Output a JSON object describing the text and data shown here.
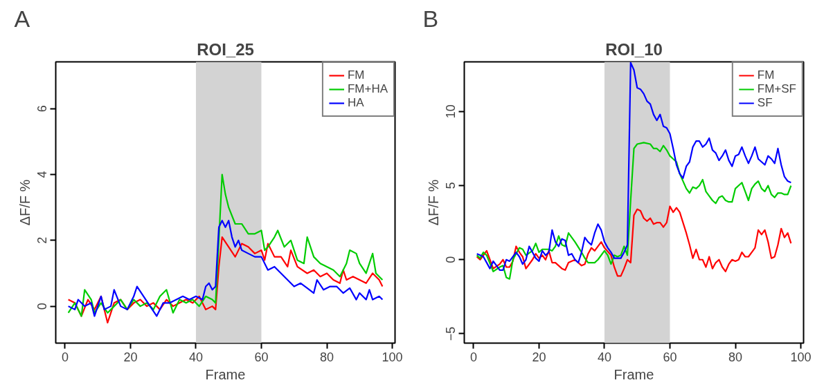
{
  "chart_data": [
    {
      "type": "line",
      "title": "ROI_25",
      "annotations": [
        "A"
      ],
      "xlabel": "Frame",
      "ylabel": "ΔF/F %",
      "xlim": [
        -2.84,
        100.84
      ],
      "ylim": [
        -1.12,
        7.42
      ],
      "xticks": [
        0,
        20,
        40,
        60,
        80,
        100
      ],
      "yticks": [
        0,
        2,
        4,
        6
      ],
      "grid": false,
      "legend": "top right",
      "bands": [
        {
          "axis": "x",
          "from": 40,
          "to": 60,
          "color": "#d3d3d3"
        }
      ],
      "series": [
        {
          "name": "FM",
          "color": "#ff0000",
          "x": [
            1,
            3,
            5,
            7,
            9,
            11,
            13,
            15,
            17,
            19,
            21,
            23,
            25,
            27,
            29,
            31,
            33,
            35,
            37,
            39,
            41,
            43,
            45,
            46,
            47,
            48,
            50,
            52,
            54,
            56,
            58,
            60,
            61,
            62,
            64,
            66,
            68,
            69,
            71,
            74,
            76,
            78,
            80,
            82,
            84,
            85,
            86,
            88,
            90,
            92,
            94,
            96,
            97
          ],
          "values": [
            0.2,
            0.1,
            -0.3,
            0.2,
            -0.1,
            0.3,
            -0.5,
            0.1,
            0.2,
            -0.1,
            0.1,
            0.2,
            0.0,
            0.1,
            -0.1,
            0.2,
            0.0,
            0.1,
            0.2,
            0.1,
            0.3,
            -0.1,
            0.0,
            -0.1,
            1.2,
            2.1,
            1.8,
            1.5,
            1.9,
            1.8,
            1.6,
            1.7,
            1.4,
            1.9,
            1.5,
            1.5,
            1.2,
            1.7,
            1.2,
            1.0,
            1.1,
            0.9,
            1.0,
            0.8,
            0.7,
            1.1,
            0.8,
            0.9,
            0.8,
            0.7,
            1.0,
            0.8,
            0.6
          ]
        },
        {
          "name": "FM+HA",
          "color": "#00cc00",
          "x": [
            1,
            3,
            5,
            6,
            8,
            9,
            11,
            13,
            15,
            17,
            19,
            21,
            23,
            25,
            27,
            29,
            31,
            33,
            35,
            37,
            39,
            41,
            43,
            45,
            46,
            47,
            48,
            49,
            50,
            52,
            54,
            56,
            58,
            60,
            61,
            62,
            64,
            65,
            67,
            69,
            71,
            73,
            74,
            76,
            78,
            80,
            82,
            84,
            86,
            87,
            89,
            90,
            92,
            93,
            94,
            95,
            96,
            97
          ],
          "values": [
            -0.2,
            0.1,
            -0.3,
            0.5,
            0.2,
            -0.2,
            0.1,
            -0.2,
            0.0,
            0.2,
            -0.1,
            0.2,
            0.0,
            0.1,
            -0.1,
            0.3,
            0.5,
            -0.2,
            0.2,
            0.1,
            0.2,
            0.0,
            0.3,
            0.2,
            0.1,
            2.0,
            4.0,
            3.4,
            3.0,
            2.5,
            2.5,
            2.2,
            2.2,
            2.3,
            1.7,
            1.8,
            2.1,
            2.3,
            1.8,
            2.0,
            1.4,
            1.3,
            2.1,
            1.5,
            1.3,
            1.2,
            1.1,
            0.9,
            1.3,
            1.7,
            1.6,
            1.3,
            1.0,
            1.3,
            1.6,
            1.0,
            0.9,
            0.8
          ]
        },
        {
          "name": "HA",
          "color": "#0000ff",
          "x": [
            1,
            3,
            4,
            6,
            8,
            9,
            11,
            12,
            14,
            15,
            17,
            19,
            21,
            22,
            24,
            26,
            28,
            30,
            32,
            34,
            36,
            38,
            40,
            42,
            43,
            44,
            45,
            46,
            47,
            48,
            49,
            50,
            51,
            52,
            53,
            54,
            56,
            58,
            60,
            62,
            64,
            66,
            68,
            70,
            72,
            74,
            76,
            77,
            79,
            81,
            83,
            85,
            87,
            89,
            90,
            92,
            93,
            94,
            96,
            97
          ],
          "values": [
            0.0,
            -0.1,
            0.2,
            0.0,
            0.1,
            -0.3,
            0.3,
            -0.1,
            0.0,
            0.5,
            0.0,
            -0.1,
            0.3,
            0.6,
            0.3,
            0.0,
            -0.3,
            0.1,
            0.1,
            0.2,
            0.3,
            0.2,
            0.3,
            0.2,
            0.6,
            0.7,
            0.5,
            0.6,
            2.4,
            2.6,
            2.4,
            2.6,
            2.1,
            1.8,
            2.0,
            1.7,
            1.6,
            1.5,
            1.5,
            1.1,
            1.2,
            1.0,
            0.8,
            0.6,
            0.7,
            0.55,
            0.4,
            0.8,
            0.5,
            0.6,
            0.6,
            0.4,
            0.55,
            0.2,
            0.4,
            0.2,
            0.5,
            0.2,
            0.3,
            0.2
          ]
        }
      ]
    },
    {
      "type": "line",
      "title": "ROI_10",
      "annotations": [
        "B"
      ],
      "xlabel": "Frame",
      "ylabel": "ΔF/F %",
      "xlim": [
        -2.84,
        100.84
      ],
      "ylim": [
        -5.63,
        13.35
      ],
      "xticks": [
        0,
        20,
        40,
        60,
        80,
        100
      ],
      "yticks": [
        -5,
        0,
        5,
        10
      ],
      "grid": false,
      "legend": "top right",
      "bands": [
        {
          "axis": "x",
          "from": 40,
          "to": 60,
          "color": "#d3d3d3"
        }
      ],
      "series": [
        {
          "name": "FM",
          "color": "#ff0000",
          "x": [
            1,
            2,
            4,
            6,
            8,
            9,
            10,
            11,
            12,
            13,
            14,
            15,
            16,
            18,
            19,
            20,
            21,
            22,
            23,
            24,
            25,
            27,
            28,
            29,
            31,
            33,
            34,
            35,
            36,
            37,
            39,
            40,
            42,
            43,
            44,
            45,
            46,
            47,
            48,
            49,
            50,
            51,
            52,
            53,
            54,
            55,
            56,
            57,
            58,
            59,
            60,
            61,
            62,
            63,
            64,
            65,
            66,
            67,
            68,
            69,
            70,
            71,
            72,
            73,
            74,
            75,
            76,
            77,
            78,
            79,
            80,
            81,
            82,
            83,
            84,
            85,
            86,
            87,
            88,
            89,
            90,
            91,
            92,
            93,
            94,
            95,
            96,
            97
          ],
          "values": [
            0.2,
            0.0,
            0.6,
            -0.6,
            -0.3,
            0.0,
            -0.5,
            -0.5,
            -0.1,
            0.9,
            0.5,
            0.2,
            -0.6,
            0.0,
            0.4,
            0.1,
            0.3,
            0.0,
            0.6,
            -0.2,
            -0.2,
            -0.6,
            -0.7,
            -0.2,
            0.0,
            -0.4,
            -0.3,
            0.4,
            0.8,
            0.6,
            1.2,
            0.8,
            0.3,
            -0.5,
            -1.1,
            -1.1,
            -0.6,
            0.0,
            -0.2,
            3.0,
            3.4,
            3.3,
            2.8,
            2.6,
            2.8,
            2.4,
            2.5,
            2.5,
            2.2,
            2.5,
            3.6,
            3.2,
            3.5,
            3.2,
            2.5,
            1.8,
            1.0,
            0.1,
            0.7,
            0.0,
            0.0,
            -0.5,
            0.2,
            -0.6,
            -0.2,
            0.0,
            -0.5,
            -0.8,
            -0.3,
            0.0,
            -0.1,
            0.0,
            0.5,
            0.2,
            0.2,
            0.5,
            0.8,
            2.0,
            1.7,
            2.0,
            1.2,
            0.1,
            0.2,
            1.0,
            2.1,
            1.5,
            1.8,
            1.1
          ]
        },
        {
          "name": "FM+SF",
          "color": "#00cc00",
          "x": [
            1,
            2,
            3,
            4,
            6,
            8,
            9,
            10,
            11,
            12,
            14,
            15,
            16,
            18,
            19,
            20,
            21,
            23,
            24,
            25,
            26,
            27,
            28,
            29,
            30,
            31,
            33,
            34,
            35,
            37,
            38,
            40,
            41,
            42,
            43,
            44,
            45,
            46,
            47,
            48,
            49,
            50,
            52,
            54,
            55,
            56,
            57,
            58,
            59,
            60,
            61,
            62,
            63,
            64,
            65,
            66,
            67,
            68,
            69,
            70,
            71,
            72,
            73,
            74,
            75,
            76,
            77,
            78,
            79,
            80,
            81,
            82,
            83,
            84,
            85,
            86,
            87,
            88,
            89,
            90,
            91,
            92,
            93,
            94,
            95,
            96,
            97
          ],
          "values": [
            0.3,
            0.1,
            0.5,
            0.3,
            -0.8,
            -0.5,
            -0.4,
            -1.2,
            -1.3,
            0.0,
            0.8,
            0.7,
            0.3,
            0.6,
            1.1,
            0.5,
            0.7,
            0.7,
            0.6,
            0.9,
            1.6,
            1.0,
            0.9,
            1.8,
            1.5,
            1.2,
            0.5,
            0.1,
            -0.2,
            -0.2,
            0.0,
            0.6,
            0.3,
            -0.3,
            0.3,
            0.2,
            0.3,
            0.9,
            0.3,
            4.0,
            7.5,
            7.8,
            7.9,
            7.8,
            7.5,
            7.5,
            7.3,
            7.7,
            7.4,
            7.0,
            6.8,
            6.6,
            5.8,
            5.3,
            4.8,
            4.5,
            4.9,
            4.8,
            5.0,
            5.4,
            4.6,
            4.3,
            4.0,
            3.8,
            4.2,
            4.3,
            4.0,
            3.9,
            3.9,
            4.8,
            5.0,
            5.2,
            4.6,
            4.0,
            4.8,
            5.1,
            5.3,
            4.8,
            4.6,
            5.0,
            4.4,
            4.2,
            4.5,
            4.5,
            4.4,
            4.4,
            5.0
          ]
        },
        {
          "name": "SF",
          "color": "#0000ff",
          "x": [
            1,
            2,
            3,
            5,
            6,
            7,
            8,
            9,
            10,
            11,
            13,
            14,
            15,
            16,
            17,
            18,
            19,
            20,
            21,
            22,
            23,
            24,
            25,
            26,
            27,
            28,
            29,
            30,
            31,
            32,
            33,
            34,
            35,
            36,
            37,
            38,
            39,
            40,
            41,
            42,
            43,
            44,
            45,
            46,
            47,
            48,
            49,
            50,
            51,
            52,
            53,
            54,
            55,
            56,
            57,
            58,
            59,
            60,
            61,
            62,
            63,
            64,
            65,
            66,
            67,
            68,
            69,
            70,
            71,
            72,
            73,
            74,
            75,
            76,
            77,
            78,
            79,
            80,
            81,
            82,
            83,
            84,
            85,
            86,
            87,
            88,
            89,
            90,
            91,
            92,
            93,
            94,
            95,
            96,
            97
          ],
          "values": [
            0.4,
            0.3,
            0.2,
            -0.6,
            -0.1,
            -0.4,
            -0.7,
            -0.7,
            0.0,
            -0.1,
            0.5,
            0.2,
            -0.3,
            0.0,
            0.9,
            0.5,
            0.1,
            -0.1,
            0.6,
            0.3,
            0.5,
            2.0,
            1.2,
            0.9,
            1.4,
            1.3,
            0.3,
            0.4,
            0.0,
            -0.2,
            0.5,
            1.5,
            1.2,
            1.0,
            1.8,
            2.4,
            2.0,
            1.2,
            0.8,
            0.5,
            0.1,
            0.1,
            0.1,
            0.5,
            1.0,
            13.3,
            12.8,
            11.6,
            11.5,
            11.2,
            10.7,
            10.5,
            9.8,
            9.4,
            9.8,
            9.0,
            8.9,
            8.5,
            7.5,
            6.4,
            5.8,
            5.5,
            6.3,
            6.6,
            7.6,
            8.0,
            8.0,
            7.6,
            7.8,
            8.2,
            7.4,
            7.2,
            6.7,
            7.0,
            7.4,
            6.7,
            6.3,
            7.0,
            7.1,
            7.6,
            7.0,
            6.5,
            7.0,
            7.6,
            6.8,
            6.6,
            6.4,
            7.0,
            6.8,
            6.5,
            7.5,
            6.4,
            5.6,
            5.3,
            5.2
          ]
        }
      ]
    }
  ]
}
